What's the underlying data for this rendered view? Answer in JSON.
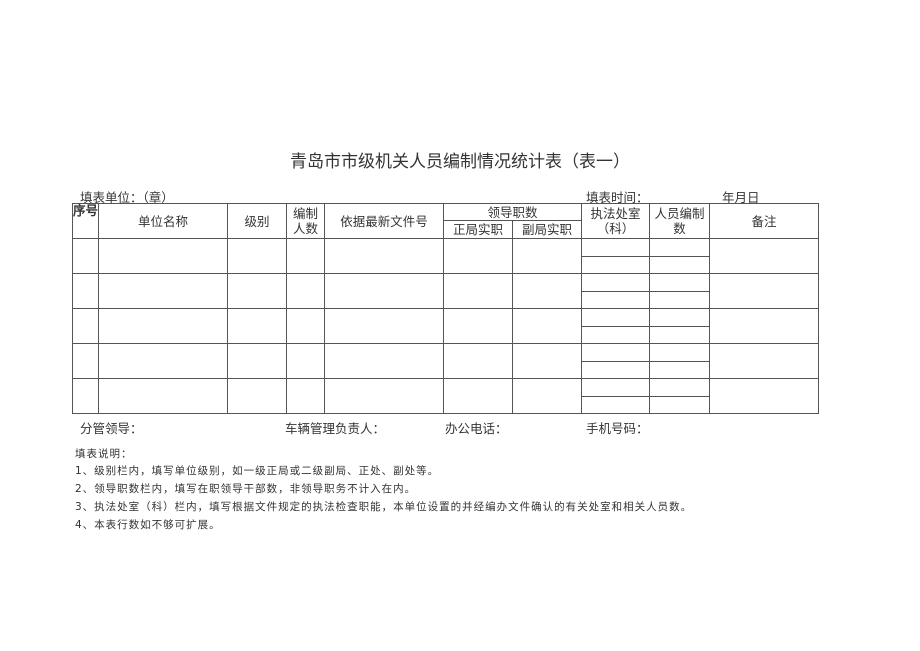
{
  "title": "青岛市市级机关人员编制情况统计表（表一）",
  "fill_unit": "填表单位：（章）",
  "fill_time": "填表时间：",
  "date": "年月日",
  "headers": {
    "seq": "序号",
    "unit_name": "单位名称",
    "level": "级别",
    "staffing": "编制人数",
    "document": "依据最新文件号",
    "leaders": "领导职数",
    "chief": "正局实职",
    "deputy": "副局实职",
    "enforcement": "执法处室（科）",
    "personnel": "人员编制数",
    "remarks": "备注"
  },
  "footer": {
    "leader": "分管领导：",
    "vehicle": "车辆管理负责人：",
    "phone": "办公电话：",
    "mobile": "手机号码："
  },
  "notes": {
    "heading": "填表说明：",
    "items": [
      "1、级别栏内，填写单位级别，如一级正局或二级副局、正处、副处等。",
      "2、领导职数栏内，填写在职领导干部数，非领导职务不计入在内。",
      "3、执法处室（科）栏内，填写根据文件规定的执法检查职能，本单位设置的并经编办文件确认的有关处室和相关人员数。",
      "4、本表行数如不够可扩展。"
    ]
  }
}
